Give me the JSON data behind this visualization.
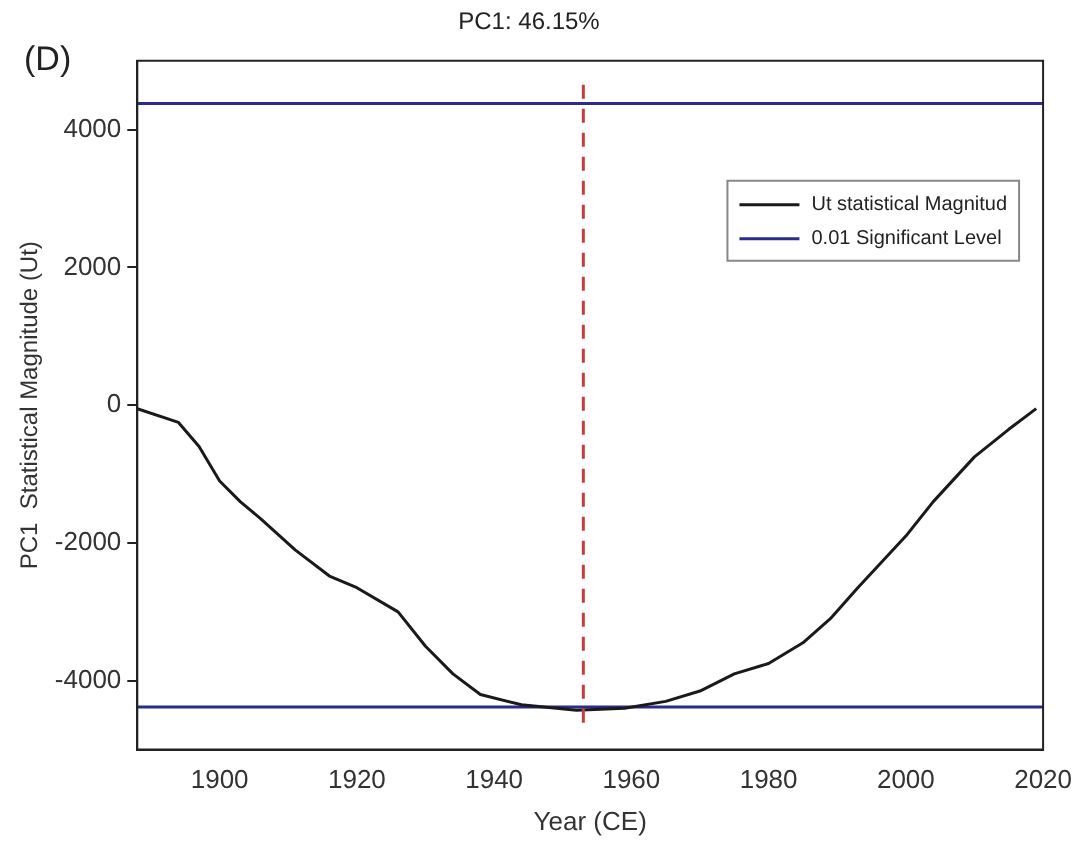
{
  "chart_data": {
    "type": "line",
    "title": "PC1: 46.15%",
    "xlabel": "Year (CE)",
    "ylabel": "PC1  Statistical Magnitude (Ut)",
    "annotations": [
      "(D)"
    ],
    "xlim": [
      1888,
      2020
    ],
    "xticks": [
      1900,
      1920,
      1940,
      1960,
      1980,
      2000,
      2020
    ],
    "ylim": [
      -5000,
      5000
    ],
    "yticks": [
      -4000,
      -2000,
      0,
      2000,
      4000
    ],
    "grid": false,
    "legend": "top right",
    "marker": "none",
    "series": [
      {
        "name": "Ut statistical Magnitud",
        "color": "#1a1a1a",
        "x": [
          1888,
          1894,
          1897,
          1900,
          1903,
          1906,
          1911,
          1916,
          1920,
          1926,
          1930,
          1934,
          1938,
          1944,
          1952,
          1959,
          1965,
          1970,
          1975,
          1980,
          1985,
          1989,
          1993,
          2000,
          2004,
          2010,
          2015,
          2019
        ],
        "values": [
          -50,
          -250,
          -600,
          -1100,
          -1400,
          -1650,
          -2100,
          -2480,
          -2650,
          -3000,
          -3500,
          -3900,
          -4200,
          -4350,
          -4430,
          -4400,
          -4300,
          -4150,
          -3900,
          -3750,
          -3450,
          -3100,
          -2650,
          -1900,
          -1400,
          -750,
          -350,
          -50
        ]
      },
      {
        "name": "0.01 Significant Level",
        "color": "#2b2b8c",
        "x": [
          1888,
          2020
        ],
        "values": [
          4380,
          4380
        ]
      },
      {
        "color": "#2b2b8c",
        "x": [
          1888,
          2020
        ],
        "values": [
          -4380,
          -4380
        ]
      }
    ],
    "ref_lines": [
      {
        "axis": "x",
        "value": 1953,
        "color": "#c83c3c",
        "line_style": "dashed"
      }
    ]
  }
}
